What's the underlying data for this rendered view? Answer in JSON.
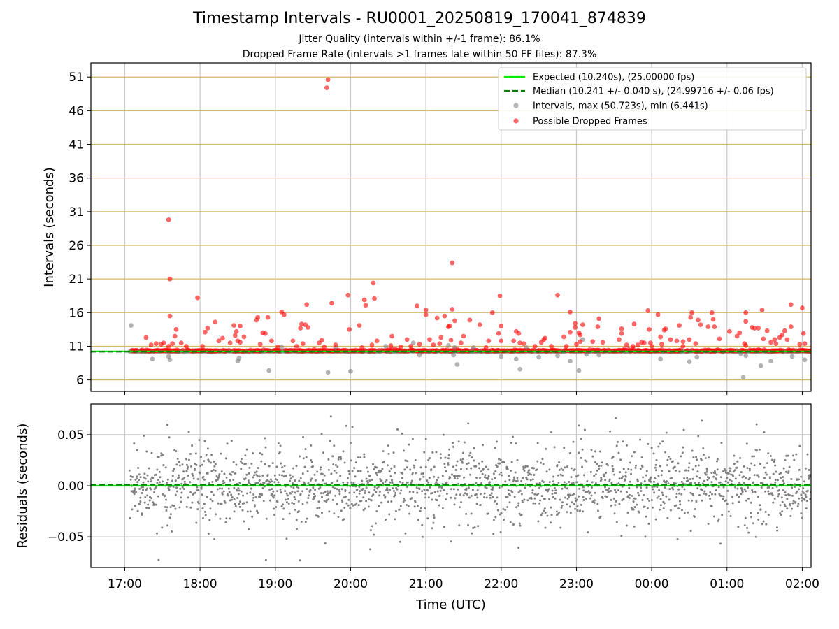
{
  "chart_data": [
    {
      "type": "scatter",
      "title": "Timestamp Intervals - RU0001_20250819_170041_874839",
      "subtitles": [
        "Jitter Quality (intervals within +/-1 frame): 86.1%",
        "Dropped Frame Rate (intervals >1 frames late within 50 FF files): 87.3%"
      ],
      "xlabel": "",
      "ylabel": "Intervals (seconds)",
      "xlim": [
        "16:33",
        "02:07"
      ],
      "ylim": [
        4.3,
        53.1
      ],
      "yticks": [
        6,
        11,
        16,
        21,
        26,
        31,
        36,
        41,
        46,
        51
      ],
      "grid": true,
      "legend_position": "top-right",
      "legend": [
        "Expected (10.240s), (25.00000 fps)",
        "Median (10.241 +/- 0.040 s), (24.99716 +/- 0.06 fps)",
        "Intervals, max (50.723s), min (6.441s)",
        "Possible Dropped Frames"
      ],
      "expected_interval": 10.24,
      "median_interval": 10.241,
      "colors": {
        "expected": "#00ee00",
        "median": "#007f00",
        "intervals": "#808080",
        "dropped": "#ff0000",
        "grid_y": "#d4b96a",
        "grid_x": "#c8c8c8"
      },
      "series": [
        {
          "name": "Intervals, max (50.723s), min (6.441s)",
          "points": [
            [
              "17:05",
              14.1
            ],
            [
              "17:22",
              9.1
            ],
            [
              "17:35",
              9.5
            ],
            [
              "17:36",
              9.0
            ],
            [
              "18:30",
              8.8
            ],
            [
              "18:31",
              9.2
            ],
            [
              "18:55",
              7.4
            ],
            [
              "19:05",
              10.9
            ],
            [
              "19:42",
              7.1
            ],
            [
              "19:48",
              10.8
            ],
            [
              "20:00",
              7.3
            ],
            [
              "20:28",
              11.0
            ],
            [
              "20:50",
              11.5
            ],
            [
              "20:55",
              9.7
            ],
            [
              "21:18",
              11.1
            ],
            [
              "21:22",
              9.7
            ],
            [
              "21:23",
              10.8
            ],
            [
              "21:25",
              8.3
            ],
            [
              "21:38",
              10.8
            ],
            [
              "22:00",
              9.5
            ],
            [
              "22:12",
              9.1
            ],
            [
              "22:15",
              7.6
            ],
            [
              "22:20",
              10.8
            ],
            [
              "22:30",
              9.4
            ],
            [
              "22:45",
              9.6
            ],
            [
              "22:55",
              8.8
            ],
            [
              "23:02",
              7.4
            ],
            [
              "23:05",
              12.0
            ],
            [
              "23:08",
              9.8
            ],
            [
              "23:18",
              9.7
            ],
            [
              "00:07",
              9.1
            ],
            [
              "00:30",
              8.7
            ],
            [
              "00:36",
              9.4
            ],
            [
              "01:11",
              9.9
            ],
            [
              "01:13",
              6.4
            ],
            [
              "01:15",
              9.6
            ],
            [
              "01:27",
              8.1
            ],
            [
              "01:35",
              8.8
            ],
            [
              "01:52",
              9.5
            ],
            [
              "02:02",
              9.0
            ]
          ]
        },
        {
          "name": "Possible Dropped Frames",
          "points": [
            [
              "17:17",
              12.3
            ],
            [
              "17:21",
              11.2
            ],
            [
              "17:25",
              11.4
            ],
            [
              "17:29",
              11.3
            ],
            [
              "17:31",
              11.5
            ],
            [
              "17:35",
              11.0
            ],
            [
              "17:35",
              29.8
            ],
            [
              "17:36",
              21.0
            ],
            [
              "17:36",
              15.5
            ],
            [
              "17:38",
              11.4
            ],
            [
              "17:40",
              12.5
            ],
            [
              "17:41",
              13.5
            ],
            [
              "17:45",
              11.5
            ],
            [
              "17:49",
              11.0
            ],
            [
              "17:58",
              18.2
            ],
            [
              "18:02",
              11.0
            ],
            [
              "18:04",
              13.1
            ],
            [
              "18:06",
              13.7
            ],
            [
              "18:12",
              14.6
            ],
            [
              "18:15",
              11.8
            ],
            [
              "18:18",
              12.2
            ],
            [
              "18:24",
              11.5
            ],
            [
              "18:27",
              14.1
            ],
            [
              "18:28",
              12.6
            ],
            [
              "18:29",
              13.2
            ],
            [
              "18:30",
              11.8
            ],
            [
              "18:32",
              11.6
            ],
            [
              "18:32",
              14.0
            ],
            [
              "18:35",
              12.4
            ],
            [
              "18:45",
              14.9
            ],
            [
              "18:46",
              15.3
            ],
            [
              "18:48",
              11.3
            ],
            [
              "18:50",
              13.0
            ],
            [
              "18:52",
              12.9
            ],
            [
              "18:54",
              15.3
            ],
            [
              "18:57",
              11.8
            ],
            [
              "19:02",
              10.9
            ],
            [
              "19:05",
              16.1
            ],
            [
              "19:07",
              15.7
            ],
            [
              "19:14",
              11.8
            ],
            [
              "19:17",
              11.0
            ],
            [
              "19:20",
              13.7
            ],
            [
              "19:21",
              14.3
            ],
            [
              "19:22",
              11.4
            ],
            [
              "19:24",
              14.2
            ],
            [
              "19:25",
              17.2
            ],
            [
              "19:26",
              13.8
            ],
            [
              "19:35",
              11.5
            ],
            [
              "19:37",
              11.9
            ],
            [
              "19:39",
              10.9
            ],
            [
              "19:41",
              49.4
            ],
            [
              "19:42",
              50.6
            ],
            [
              "19:45",
              17.4
            ],
            [
              "19:48",
              11.2
            ],
            [
              "19:58",
              18.6
            ],
            [
              "19:59",
              13.5
            ],
            [
              "20:07",
              14.1
            ],
            [
              "20:09",
              10.8
            ],
            [
              "20:11",
              17.9
            ],
            [
              "20:12",
              17.1
            ],
            [
              "20:17",
              11.2
            ],
            [
              "20:18",
              20.4
            ],
            [
              "20:19",
              18.1
            ],
            [
              "20:21",
              11.8
            ],
            [
              "20:32",
              11.1
            ],
            [
              "20:33",
              12.5
            ],
            [
              "20:40",
              10.9
            ],
            [
              "20:45",
              12.0
            ],
            [
              "20:48",
              11.0
            ],
            [
              "20:53",
              17.0
            ],
            [
              "20:55",
              11.3
            ],
            [
              "21:00",
              15.7
            ],
            [
              "21:00",
              16.4
            ],
            [
              "21:03",
              12.0
            ],
            [
              "21:06",
              11.2
            ],
            [
              "21:09",
              15.2
            ],
            [
              "21:11",
              11.4
            ],
            [
              "21:12",
              12.3
            ],
            [
              "21:15",
              15.5
            ],
            [
              "21:18",
              13.9
            ],
            [
              "21:19",
              14.0
            ],
            [
              "21:20",
              11.9
            ],
            [
              "21:21",
              16.5
            ],
            [
              "21:21",
              23.4
            ],
            [
              "21:23",
              14.8
            ],
            [
              "21:28",
              11.5
            ],
            [
              "21:30",
              12.5
            ],
            [
              "21:35",
              14.9
            ],
            [
              "21:43",
              14.2
            ],
            [
              "21:48",
              10.8
            ],
            [
              "21:50",
              11.8
            ],
            [
              "21:53",
              16.0
            ],
            [
              "21:58",
              12.9
            ],
            [
              "21:59",
              18.5
            ],
            [
              "22:00",
              14.0
            ],
            [
              "22:00",
              11.8
            ],
            [
              "22:10",
              11.8
            ],
            [
              "22:12",
              13.2
            ],
            [
              "22:14",
              12.9
            ],
            [
              "22:15",
              11.5
            ],
            [
              "22:18",
              11.4
            ],
            [
              "22:27",
              11.0
            ],
            [
              "22:32",
              11.6
            ],
            [
              "22:34",
              12.0
            ],
            [
              "22:35",
              12.2
            ],
            [
              "22:40",
              11.0
            ],
            [
              "22:45",
              18.6
            ],
            [
              "22:50",
              12.4
            ],
            [
              "22:52",
              11.0
            ],
            [
              "22:55",
              13.1
            ],
            [
              "22:55",
              16.1
            ],
            [
              "22:59",
              14.4
            ],
            [
              "22:59",
              13.8
            ],
            [
              "23:00",
              11.3
            ],
            [
              "23:02",
              13.0
            ],
            [
              "23:03",
              12.7
            ],
            [
              "23:03",
              11.7
            ],
            [
              "23:05",
              14.2
            ],
            [
              "23:13",
              11.7
            ],
            [
              "23:17",
              13.9
            ],
            [
              "23:18",
              15.1
            ],
            [
              "23:21",
              11.6
            ],
            [
              "23:34",
              12.0
            ],
            [
              "23:36",
              12.9
            ],
            [
              "23:36",
              13.6
            ],
            [
              "23:40",
              11.2
            ],
            [
              "23:45",
              11.0
            ],
            [
              "23:46",
              14.3
            ],
            [
              "23:49",
              11.2
            ],
            [
              "23:52",
              11.6
            ],
            [
              "23:54",
              11.5
            ],
            [
              "23:57",
              16.3
            ],
            [
              "23:59",
              11.5
            ],
            [
              "23:58",
              13.5
            ],
            [
              "00:00",
              11.0
            ],
            [
              "00:05",
              15.7
            ],
            [
              "00:07",
              12.4
            ],
            [
              "00:08",
              11.3
            ],
            [
              "00:10",
              13.4
            ],
            [
              "00:11",
              13.6
            ],
            [
              "00:15",
              12.0
            ],
            [
              "00:20",
              11.8
            ],
            [
              "00:22",
              14.1
            ],
            [
              "00:25",
              11.7
            ],
            [
              "00:25",
              11.0
            ],
            [
              "00:30",
              12.0
            ],
            [
              "00:31",
              15.3
            ],
            [
              "00:32",
              16.0
            ],
            [
              "00:35",
              11.4
            ],
            [
              "00:37",
              14.9
            ],
            [
              "00:39",
              14.2
            ],
            [
              "00:45",
              13.9
            ],
            [
              "00:48",
              16.0
            ],
            [
              "00:49",
              15.0
            ],
            [
              "00:50",
              13.9
            ],
            [
              "00:54",
              12.1
            ],
            [
              "01:02",
              13.2
            ],
            [
              "01:08",
              12.5
            ],
            [
              "01:10",
              13.0
            ],
            [
              "01:14",
              11.4
            ],
            [
              "01:15",
              11.1
            ],
            [
              "01:15",
              16.0
            ],
            [
              "01:15",
              14.7
            ],
            [
              "01:20",
              13.8
            ],
            [
              "01:22",
              13.7
            ],
            [
              "01:25",
              13.7
            ],
            [
              "01:28",
              16.4
            ],
            [
              "01:29",
              12.1
            ],
            [
              "01:32",
              13.3
            ],
            [
              "01:35",
              11.6
            ],
            [
              "01:38",
              12.0
            ],
            [
              "01:39",
              11.4
            ],
            [
              "01:42",
              12.3
            ],
            [
              "01:44",
              12.7
            ],
            [
              "01:46",
              13.3
            ],
            [
              "01:48",
              12.0
            ],
            [
              "01:51",
              13.9
            ],
            [
              "01:51",
              17.2
            ],
            [
              "01:58",
              11.3
            ],
            [
              "02:00",
              16.7
            ],
            [
              "02:01",
              12.9
            ],
            [
              "02:02",
              11.4
            ]
          ]
        }
      ]
    },
    {
      "type": "scatter",
      "title": "",
      "xlabel": "Time (UTC)",
      "ylabel": "Residuals (seconds)",
      "xlim": [
        "16:33",
        "02:07"
      ],
      "ylim": [
        -0.08,
        0.08
      ],
      "yticks": [
        -0.05,
        0.0,
        0.05
      ],
      "ytick_labels": [
        "−0.05",
        "0.00",
        "0.05"
      ],
      "xticks": [
        "17:00",
        "18:00",
        "19:00",
        "20:00",
        "21:00",
        "22:00",
        "23:00",
        "00:00",
        "01:00",
        "02:00"
      ],
      "grid": true,
      "series": [
        {
          "name": "",
          "color": "#808080",
          "distribution": {
            "center": 0.0,
            "spread": 0.022,
            "count": 1900,
            "range": [
              -0.073,
              0.08
            ]
          }
        }
      ],
      "reference_lines": {
        "expected": 0.0,
        "median": 0.001
      }
    }
  ]
}
